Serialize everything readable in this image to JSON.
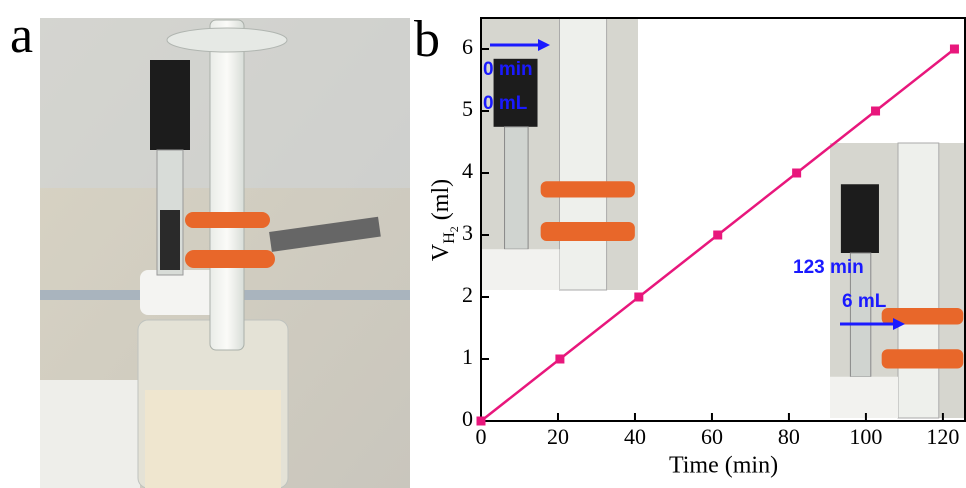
{
  "panel_labels": [
    "a",
    "b"
  ],
  "chart_data": {
    "type": "line",
    "xlabel": "Time (min)",
    "ylabel_parts": [
      "V",
      "H",
      "2",
      "(ml)"
    ],
    "x": [
      0,
      20.5,
      41,
      61.5,
      82,
      102.5,
      123
    ],
    "series": [
      {
        "color": "#e8177c",
        "values": [
          0,
          1,
          2,
          3,
          4,
          5,
          6
        ]
      }
    ],
    "xlim": [
      0,
      126
    ],
    "ylim": [
      0,
      6.5
    ],
    "xticks": [
      0,
      20,
      40,
      60,
      80,
      100,
      120
    ],
    "yticks": [
      0,
      1,
      2,
      3,
      4,
      5,
      6
    ],
    "annotations": [
      "0 min",
      "0 mL",
      "123 min",
      "6 mL"
    ]
  }
}
